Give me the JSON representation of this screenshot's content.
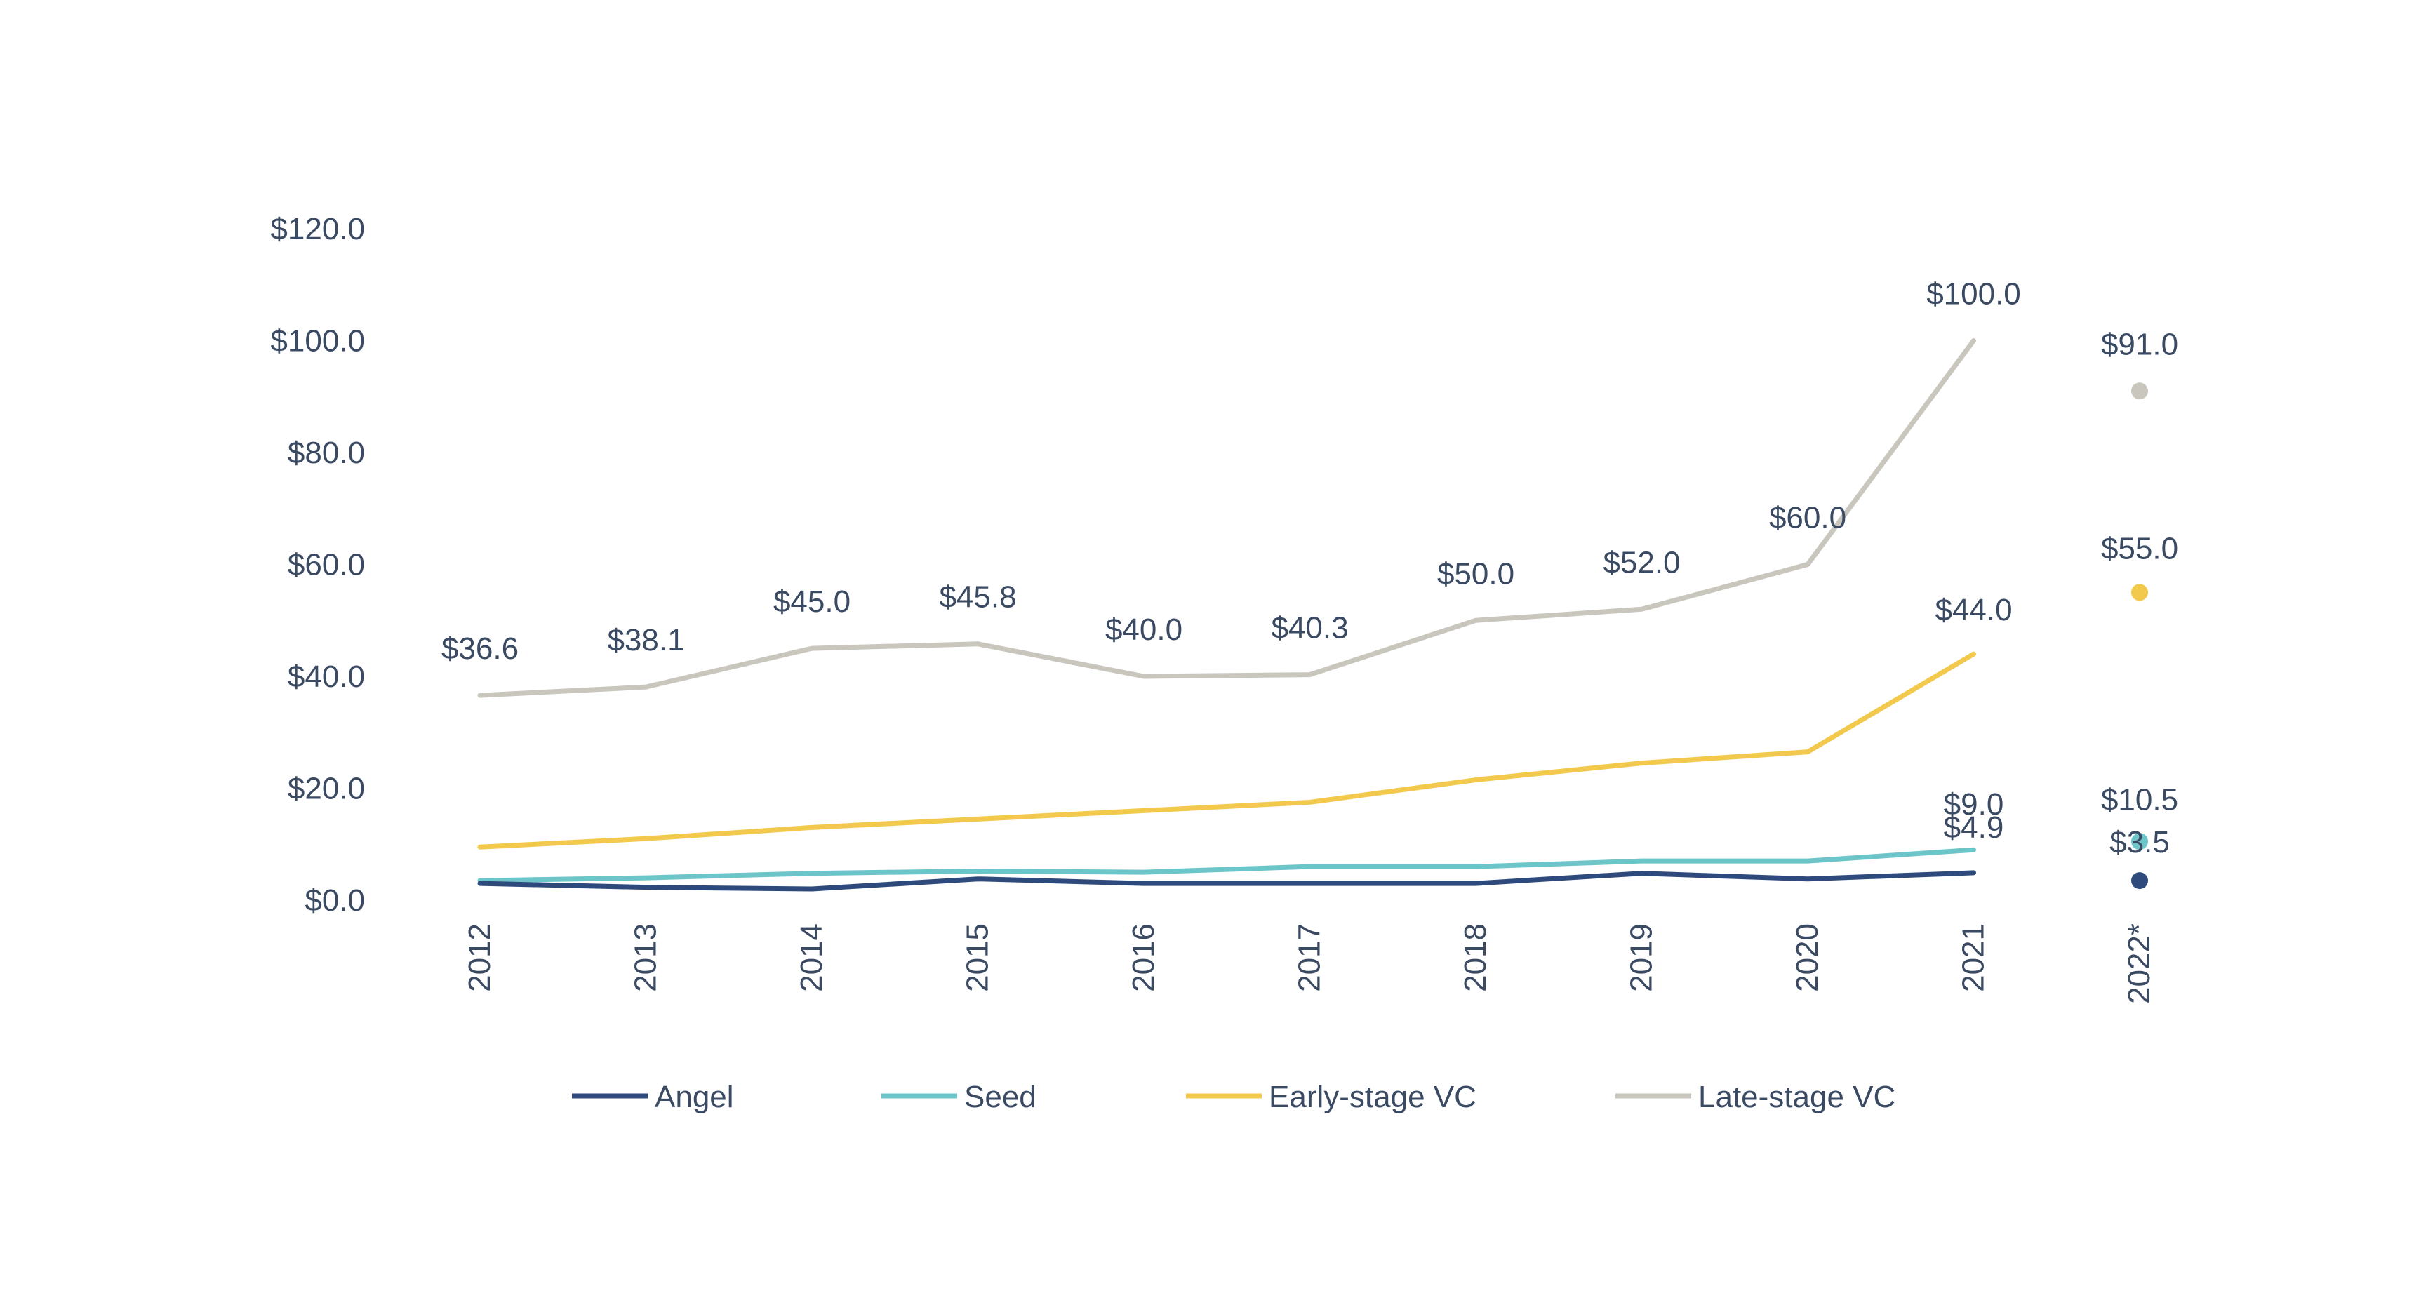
{
  "chart_data": {
    "type": "line",
    "title": "",
    "xlabel": "",
    "ylabel": "",
    "categories": [
      "2012",
      "2013",
      "2014",
      "2015",
      "2016",
      "2017",
      "2018",
      "2019",
      "2020",
      "2021",
      "2022*"
    ],
    "y_ticks": [
      "$0.0",
      "$20.0",
      "$40.0",
      "$60.0",
      "$80.0",
      "$100.0",
      "$120.0"
    ],
    "ylim": [
      0,
      120
    ],
    "grid": false,
    "legend_position": "bottom",
    "series": [
      {
        "name": "Angel",
        "color": "#2e4a7d",
        "values": [
          3.0,
          2.3,
          2.0,
          3.8,
          3.0,
          3.0,
          3.0,
          4.8,
          3.8,
          4.9,
          3.5
        ],
        "labels": [
          "",
          "",
          "",
          "",
          "",
          "",
          "",
          "",
          "",
          "$4.9",
          "$3.5"
        ]
      },
      {
        "name": "Seed",
        "color": "#6cc5c8",
        "values": [
          3.5,
          4.0,
          4.8,
          5.2,
          5.0,
          6.0,
          6.0,
          7.0,
          7.0,
          9.0,
          10.5
        ],
        "labels": [
          "",
          "",
          "",
          "",
          "",
          "",
          "",
          "",
          "",
          "$9.0",
          "$10.5"
        ]
      },
      {
        "name": "Early-stage VC",
        "color": "#f2c94c",
        "values": [
          9.5,
          11.0,
          13.0,
          14.5,
          16.0,
          17.5,
          21.5,
          24.5,
          26.5,
          44.0,
          55.0
        ],
        "labels": [
          "",
          "",
          "",
          "",
          "",
          "",
          "",
          "",
          "",
          "$44.0",
          "$55.0"
        ]
      },
      {
        "name": "Late-stage VC",
        "color": "#c8c6bd",
        "values": [
          36.6,
          38.1,
          45.0,
          45.8,
          40.0,
          40.3,
          50.0,
          52.0,
          60.0,
          100.0,
          91.0
        ],
        "labels": [
          "$36.6",
          "$38.1",
          "$45.0",
          "$45.8",
          "$40.0",
          "$40.3",
          "$50.0",
          "$52.0",
          "$60.0",
          "$100.0",
          "$91.0"
        ]
      }
    ]
  }
}
